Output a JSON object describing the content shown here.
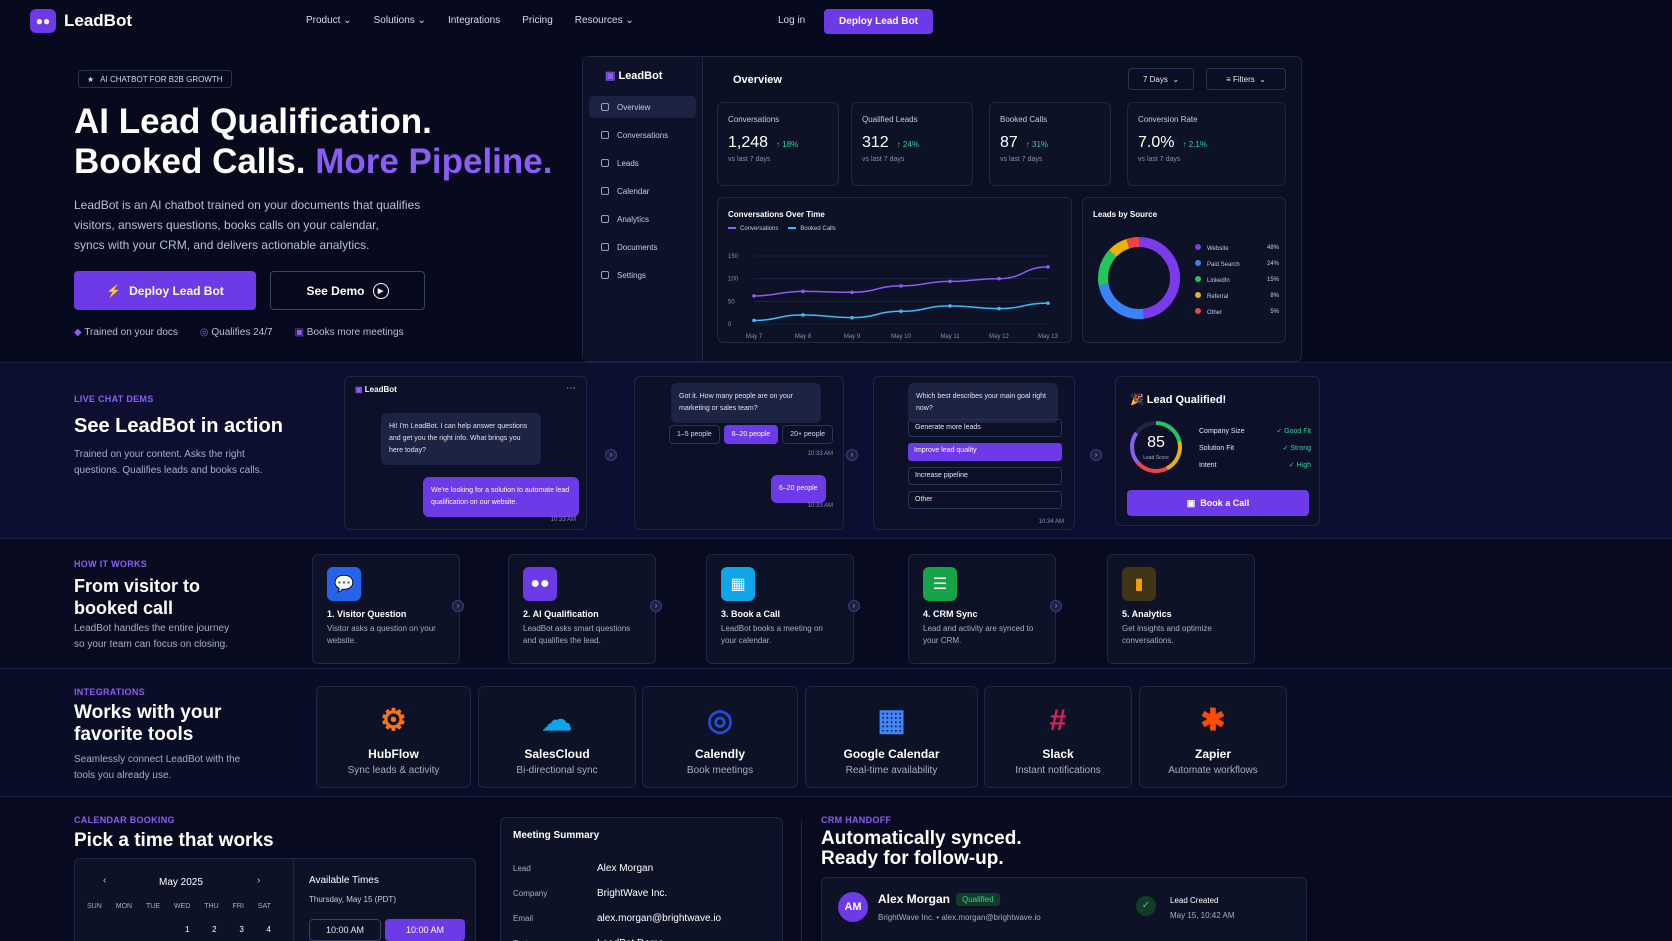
{
  "header": {
    "brand": "LeadBot",
    "nav": [
      "Product",
      "Solutions",
      "Integrations",
      "Pricing",
      "Resources"
    ],
    "login": "Log in",
    "cta": "Deploy Lead Bot"
  },
  "hero": {
    "badge": "AI CHATBOT FOR B2B GROWTH",
    "title_line1": "AI Lead Qualification.",
    "title_line2a": "Booked Calls.",
    "title_line2b": "More Pipeline.",
    "desc1": "LeadBot is an AI chatbot trained on your documents that qualifies",
    "desc2": "visitors, answers questions, books calls on your calendar,",
    "desc3": "syncs with your CRM, and delivers actionable analytics.",
    "cta_primary": "Deploy Lead Bot",
    "cta_secondary": "See Demo",
    "features": [
      "Trained on your docs",
      "Qualifies 24/7",
      "Books more meetings"
    ]
  },
  "dashboard": {
    "brand": "LeadBot",
    "title": "Overview",
    "range": "7 Days",
    "filters": "Filters",
    "sidebar": [
      "Overview",
      "Conversations",
      "Leads",
      "Calendar",
      "Analytics",
      "Documents",
      "Settings"
    ],
    "kpis": [
      {
        "title": "Conversations",
        "value": "1,248",
        "delta": "↑ 18%",
        "sub": "vs last 7 days"
      },
      {
        "title": "Qualified Leads",
        "value": "312",
        "delta": "↑ 24%",
        "sub": "vs last 7 days"
      },
      {
        "title": "Booked Calls",
        "value": "87",
        "delta": "↑ 31%",
        "sub": "vs last 7 days"
      },
      {
        "title": "Conversion Rate",
        "value": "7.0%",
        "delta": "↑ 2.1%",
        "sub": "vs last 7 days"
      }
    ]
  },
  "chart_data": [
    {
      "type": "line",
      "title": "Conversations Over Time",
      "x": [
        "May 7",
        "May 8",
        "May 9",
        "May 10",
        "May 11",
        "May 12",
        "May 13"
      ],
      "series": [
        {
          "name": "Conversations",
          "color": "#8b5cf6",
          "values": [
            62,
            72,
            70,
            84,
            94,
            100,
            126
          ]
        },
        {
          "name": "Booked Calls",
          "color": "#38bdf8",
          "values": [
            8,
            20,
            14,
            28,
            40,
            34,
            46
          ]
        }
      ],
      "yticks": [
        "150",
        "100",
        "50",
        "0"
      ],
      "ylim": [
        0,
        150
      ]
    },
    {
      "type": "pie",
      "title": "Leads by Source",
      "categories": [
        "Website",
        "Paid Search",
        "LinkedIn",
        "Referral",
        "Other"
      ],
      "values": [
        48,
        24,
        15,
        8,
        5
      ],
      "labels": [
        "48%",
        "24%",
        "15%",
        "8%",
        "5%"
      ],
      "colors": [
        "#7c3aed",
        "#3b82f6",
        "#22c55e",
        "#eab308",
        "#ef4444"
      ]
    }
  ],
  "chat": {
    "label": "LIVE CHAT DEMS",
    "title": "See LeadBot in action",
    "desc1": "Trained on your content. Asks the right",
    "desc2": "questions. Qualifies leads and books calls.",
    "bot_name": "LeadBot",
    "msg1": "Hi! I'm LeadBot. I can help answer questions and get you the right info. What brings you here today?",
    "reply1": "We're looking for a solution to automate lead qualification on our website.",
    "time": "10:33 AM",
    "msg2": "Got it. How many people are on your marketing or sales team?",
    "options2": [
      "1–5 people",
      "6–20 people",
      "20+ people"
    ],
    "reply2": "6–20 people",
    "msg3": "Which best describes your main goal right now?",
    "options3": [
      "Generate more leads",
      "Improve lead quality",
      "Increase pipeline",
      "Other"
    ],
    "time3": "10:34 AM",
    "qual_title": "Lead Qualified!",
    "score": "85",
    "score_label": "Lead Score",
    "criteria": [
      {
        "k": "Company Size",
        "v": "✓ Good Fit"
      },
      {
        "k": "Solution Fit",
        "v": "✓ Strong"
      },
      {
        "k": "Intent",
        "v": "✓ High"
      }
    ],
    "book": "Book a Call"
  },
  "how": {
    "label": "HOW IT WORKS",
    "title1": "From visitor to",
    "title2": "booked call",
    "desc1": "LeadBot handles the entire journey",
    "desc2": "so your team can focus on closing.",
    "steps": [
      {
        "title": "1. Visitor Question",
        "desc": "Visitor asks a question on your website."
      },
      {
        "title": "2. AI Qualification",
        "desc": "LeadBot asks smart questions and qualifies the lead."
      },
      {
        "title": "3. Book a Call",
        "desc": "LeadBot books a meeting on your calendar."
      },
      {
        "title": "4. CRM Sync",
        "desc": "Lead and activity are synced to your CRM."
      },
      {
        "title": "5. Analytics",
        "desc": "Get insights and optimize conversations."
      }
    ]
  },
  "integrations": {
    "label": "INTEGRATIONS",
    "title1": "Works with your",
    "title2": "favorite tools",
    "desc1": "Seamlessly connect LeadBot with the",
    "desc2": "tools you already use.",
    "tools": [
      {
        "name": "HubFlow",
        "desc": "Sync leads & activity"
      },
      {
        "name": "SalesCloud",
        "desc": "Bi-directional sync"
      },
      {
        "name": "Calendly",
        "desc": "Book meetings"
      },
      {
        "name": "Google Calendar",
        "desc": "Real-time availability"
      },
      {
        "name": "Slack",
        "desc": "Instant notifications"
      },
      {
        "name": "Zapier",
        "desc": "Automate workflows"
      }
    ]
  },
  "calendar": {
    "label": "CALENDAR BOOKING",
    "title": "Pick a time that works",
    "month": "May 2025",
    "days": [
      "SUN",
      "MON",
      "TUE",
      "WED",
      "THU",
      "FRI",
      "SAT"
    ],
    "dates": [
      "1",
      "2",
      "3",
      "4"
    ],
    "avail_title": "Available Times",
    "avail_date": "Thursday, May 15 (PDT)",
    "slot1": "10:00 AM",
    "slot2": "10:00 AM"
  },
  "meeting": {
    "title": "Meeting Summary",
    "rows": [
      {
        "k": "Lead",
        "v": "Alex Morgan"
      },
      {
        "k": "Company",
        "v": "BrightWave Inc."
      },
      {
        "k": "Email",
        "v": "alex.morgan@brightwave.io"
      },
      {
        "k": "Topic",
        "v": "LeadBot Demo"
      }
    ]
  },
  "crm": {
    "label": "CRM HANDOFF",
    "title1": "Automatically synced.",
    "title2": "Ready for follow-up.",
    "initials": "AM",
    "name": "Alex Morgan",
    "badge": "Qualified",
    "sub": "BrightWave Inc. • alex.morgan@brightwave.io",
    "event": "Lead Created",
    "event_time": "May 15, 10:42 AM"
  }
}
